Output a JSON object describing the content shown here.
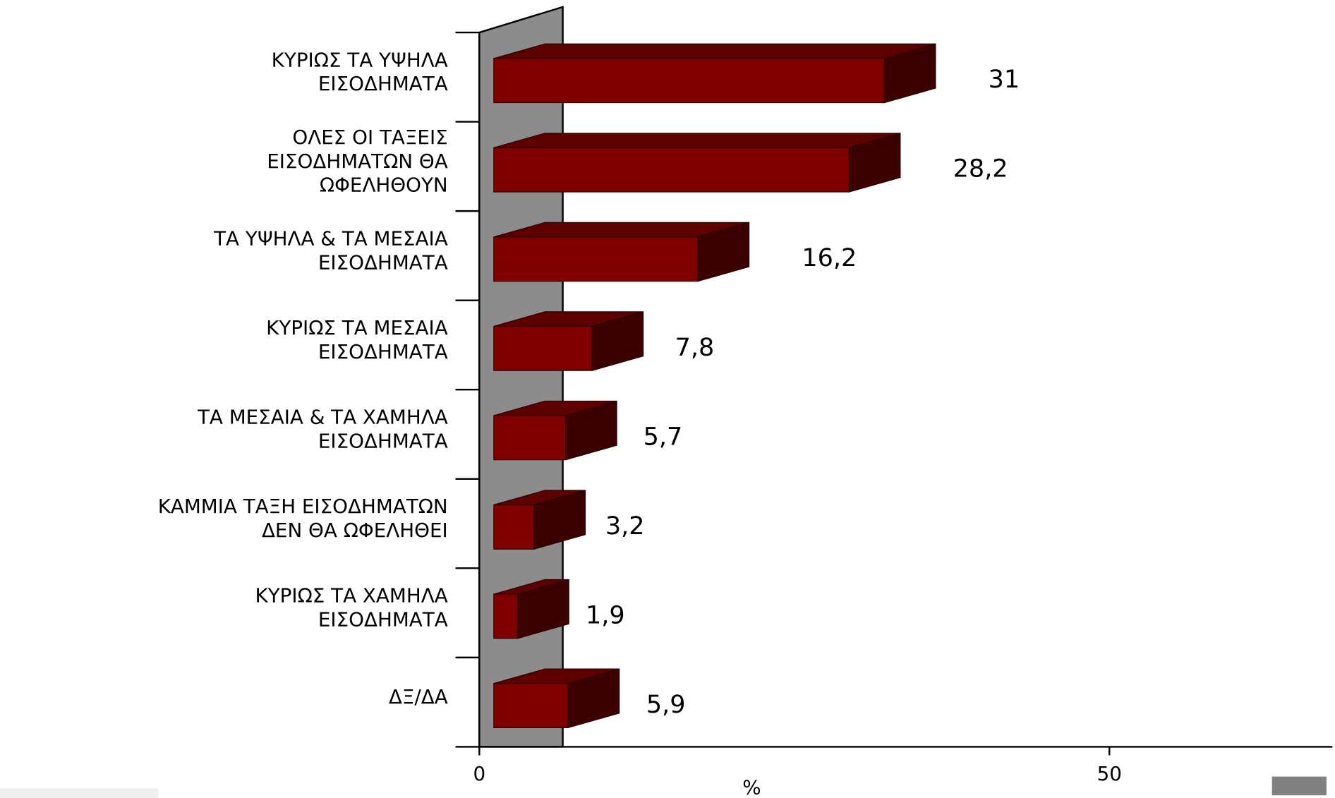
{
  "chart_data": {
    "type": "bar3d_horizontal",
    "categories": [
      [
        "ΚΥΡΙΩΣ ΤΑ ΥΨΗΛΑ",
        "ΕΙΣΟΔΗΜΑΤΑ"
      ],
      [
        "ΟΛΕΣ ΟΙ ΤΑΞΕΙΣ",
        "ΕΙΣΟΔΗΜΑΤΩΝ ΘΑ",
        "ΩΦΕΛΗΘΟΥΝ"
      ],
      [
        "ΤΑ ΥΨΗΛΑ & ΤΑ ΜΕΣΑΙΑ",
        "ΕΙΣΟΔΗΜΑΤΑ"
      ],
      [
        "ΚΥΡΙΩΣ ΤΑ ΜΕΣΑΙΑ",
        "ΕΙΣΟΔΗΜΑΤΑ"
      ],
      [
        "ΤΑ ΜΕΣΑΙΑ & ΤΑ ΧΑΜΗΛΑ",
        "ΕΙΣΟΔΗΜΑΤΑ"
      ],
      [
        "ΚΑΜΜΙΑ ΤΑΞΗ ΕΙΣΟΔΗΜΑΤΩΝ",
        "ΔΕΝ ΘΑ ΩΦΕΛΗΘΕΙ"
      ],
      [
        "ΚΥΡΙΩΣ ΤΑ ΧΑΜΗΛΑ",
        "ΕΙΣΟΔΗΜΑΤΑ"
      ],
      [
        "ΔΞ/ΔΑ"
      ]
    ],
    "values": [
      31,
      28.2,
      16.2,
      7.8,
      5.7,
      3.2,
      1.9,
      5.9
    ],
    "value_labels": [
      "31",
      "28,2",
      "16,2",
      "7,8",
      "5,7",
      "3,2",
      "1,9",
      "5,9"
    ],
    "color": "#800000",
    "xlabel": "%",
    "xlim": [
      0,
      67.7
    ],
    "xticks": [
      0,
      50
    ]
  }
}
